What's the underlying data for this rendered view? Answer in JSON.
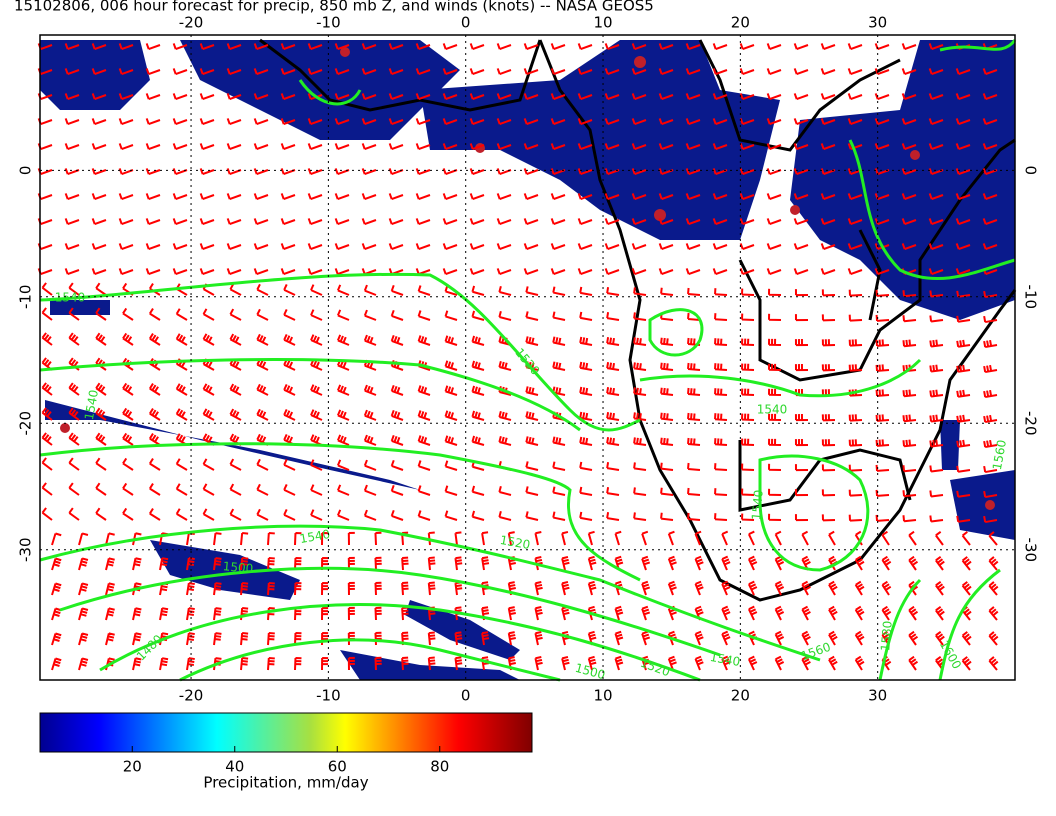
{
  "title": "15102806, 006 hour forecast for precip, 850 mb Z, and winds (knots) -- NASA GEOS5",
  "map": {
    "lon_ticks": [
      -20,
      -10,
      0,
      10,
      20,
      30
    ],
    "lat_ticks": [
      0,
      -10,
      -20,
      -30
    ],
    "lon_range": [
      -31,
      40
    ],
    "lat_range": [
      10.7,
      -40.3
    ]
  },
  "contour_labels": [
    "1540",
    "1540",
    "1520",
    "1540",
    "1520",
    "1540",
    "1500",
    "1480",
    "1500",
    "1520",
    "1540",
    "1560",
    "1580",
    "1600",
    "1540",
    "1560"
  ],
  "colorbar": {
    "range": [
      2,
      98
    ],
    "ticks": [
      20,
      40,
      60,
      80
    ],
    "label": "Precipitation, mm/day"
  }
}
